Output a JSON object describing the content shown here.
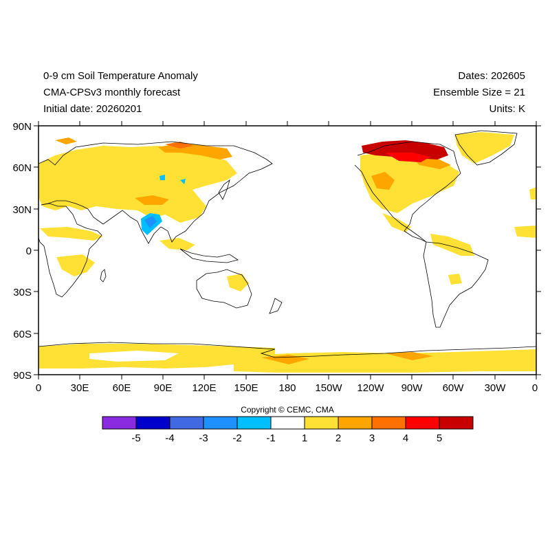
{
  "header": {
    "title": "0-9 cm Soil Temperature Anomaly",
    "model": "CMA-CPSv3 monthly forecast",
    "initial_date": "Initial date: 20260201",
    "dates": "Dates: 202605",
    "ensemble": "Ensemble Size = 21",
    "units": "Units: K"
  },
  "axes": {
    "lat_labels": [
      "90N",
      "60N",
      "30N",
      "0",
      "30S",
      "60S",
      "90S"
    ],
    "lon_labels": [
      "0",
      "30E",
      "60E",
      "90E",
      "120E",
      "150E",
      "180",
      "150W",
      "120W",
      "90W",
      "60W",
      "30W",
      "0"
    ]
  },
  "copyright": "Copyright © CEMC, CMA",
  "colorbar": {
    "colors": [
      "#8a2be2",
      "#0000cd",
      "#4169e1",
      "#1e90ff",
      "#00bfff",
      "#ffffff",
      "#ffe135",
      "#ffa500",
      "#ff7000",
      "#ff0000",
      "#c80000"
    ],
    "labels": [
      "-5",
      "-4",
      "-3",
      "-2",
      "-1",
      "1",
      "2",
      "3",
      "4",
      "5"
    ]
  },
  "colors": {
    "light_yellow": "#ffe135",
    "orange": "#ffa500",
    "dark_orange": "#ff7000",
    "red": "#ff0000",
    "dark_red": "#c80000",
    "light_blue": "#00bfff",
    "blue": "#1e90ff"
  }
}
